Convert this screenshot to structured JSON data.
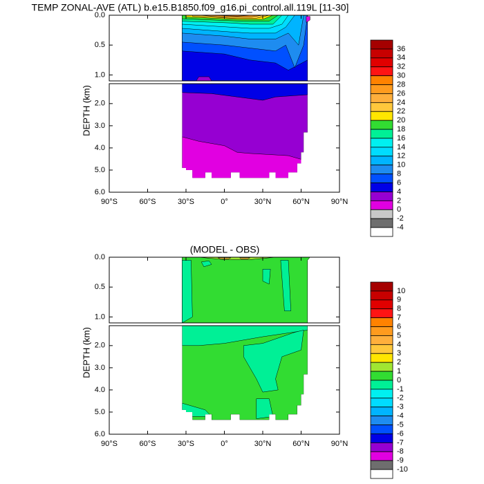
{
  "chart_data": [
    {
      "type": "contour",
      "title": "TEMP ZONAL-AVE (ATL) b.e15.B1850.f09_g16.pi_control.all.119L [11-30]",
      "y_label": "DEPTH (km)",
      "xlim": [
        -90,
        90
      ],
      "xticks": [
        {
          "value": -90,
          "label": "90°S"
        },
        {
          "value": -60,
          "label": "60°S"
        },
        {
          "value": -30,
          "label": "30°S"
        },
        {
          "value": 0,
          "label": "0°"
        },
        {
          "value": 30,
          "label": "30°N"
        },
        {
          "value": 60,
          "label": "60°N"
        },
        {
          "value": 90,
          "label": "90°N"
        }
      ],
      "panels": [
        {
          "ylim": [
            0,
            1.1
          ],
          "yticks": [
            {
              "value": 0,
              "label": "0.0"
            },
            0.5,
            {
              "value": 1,
              "label": "1.0"
            }
          ]
        },
        {
          "ylim": [
            1.1,
            6
          ],
          "yticks": [
            {
              "value": 2,
              "label": "2.0"
            },
            {
              "value": 3,
              "label": "3.0"
            },
            {
              "value": 4,
              "label": "4.0"
            },
            {
              "value": 5,
              "label": "5.0"
            },
            {
              "value": 6,
              "label": "6.0"
            }
          ]
        }
      ],
      "colorbar": {
        "levels": [
          36,
          34,
          32,
          30,
          28,
          26,
          24,
          22,
          20,
          18,
          16,
          14,
          12,
          10,
          8,
          6,
          4,
          2,
          0,
          -2,
          -4
        ],
        "colors": [
          "#a50000",
          "#c80000",
          "#e10000",
          "#ff1414",
          "#ff8200",
          "#ff9b1e",
          "#ffaf3c",
          "#ffc83c",
          "#ffe600",
          "#32dc32",
          "#00f096",
          "#00f0f0",
          "#00dcff",
          "#00b4ff",
          "#1e8cf0",
          "#0050ff",
          "#0000e6",
          "#9600d2",
          "#e100e1",
          "#c8c8c8",
          "#6e6e6e",
          "#ffffff"
        ]
      }
    },
    {
      "type": "contour",
      "title": "(MODEL - OBS)",
      "y_label": "DEPTH (km)",
      "xlim": [
        -90,
        90
      ],
      "xticks": [
        {
          "value": -90,
          "label": "90°S"
        },
        {
          "value": -60,
          "label": "60°S"
        },
        {
          "value": -30,
          "label": "30°S"
        },
        {
          "value": 0,
          "label": "0°"
        },
        {
          "value": 30,
          "label": "30°N"
        },
        {
          "value": 60,
          "label": "60°N"
        },
        {
          "value": 90,
          "label": "90°N"
        }
      ],
      "panels": [
        {
          "ylim": [
            0,
            1.1
          ],
          "yticks": [
            {
              "value": 0,
              "label": "0.0"
            },
            0.5,
            {
              "value": 1,
              "label": "1.0"
            }
          ]
        },
        {
          "ylim": [
            1.1,
            6
          ],
          "yticks": [
            {
              "value": 2,
              "label": "2.0"
            },
            {
              "value": 3,
              "label": "3.0"
            },
            {
              "value": 4,
              "label": "4.0"
            },
            {
              "value": 5,
              "label": "5.0"
            },
            {
              "value": 6,
              "label": "6.0"
            }
          ]
        }
      ],
      "colorbar": {
        "levels": [
          10,
          9,
          8,
          7,
          6,
          5,
          4,
          3,
          2,
          1,
          0,
          -1,
          -2,
          -3,
          -4,
          -5,
          -6,
          -7,
          -8,
          -9,
          -10
        ],
        "colors": [
          "#a50000",
          "#c80000",
          "#e10000",
          "#ff1414",
          "#ff8200",
          "#ff9b1e",
          "#ffaf3c",
          "#ffc83c",
          "#ffe600",
          "#a0e632",
          "#32dc32",
          "#00f096",
          "#00f0f0",
          "#00dcff",
          "#00b4ff",
          "#1e8cf0",
          "#0050ff",
          "#0000e6",
          "#9600d2",
          "#e100e1",
          "#6e6e6e",
          "#ffffff"
        ]
      }
    }
  ]
}
